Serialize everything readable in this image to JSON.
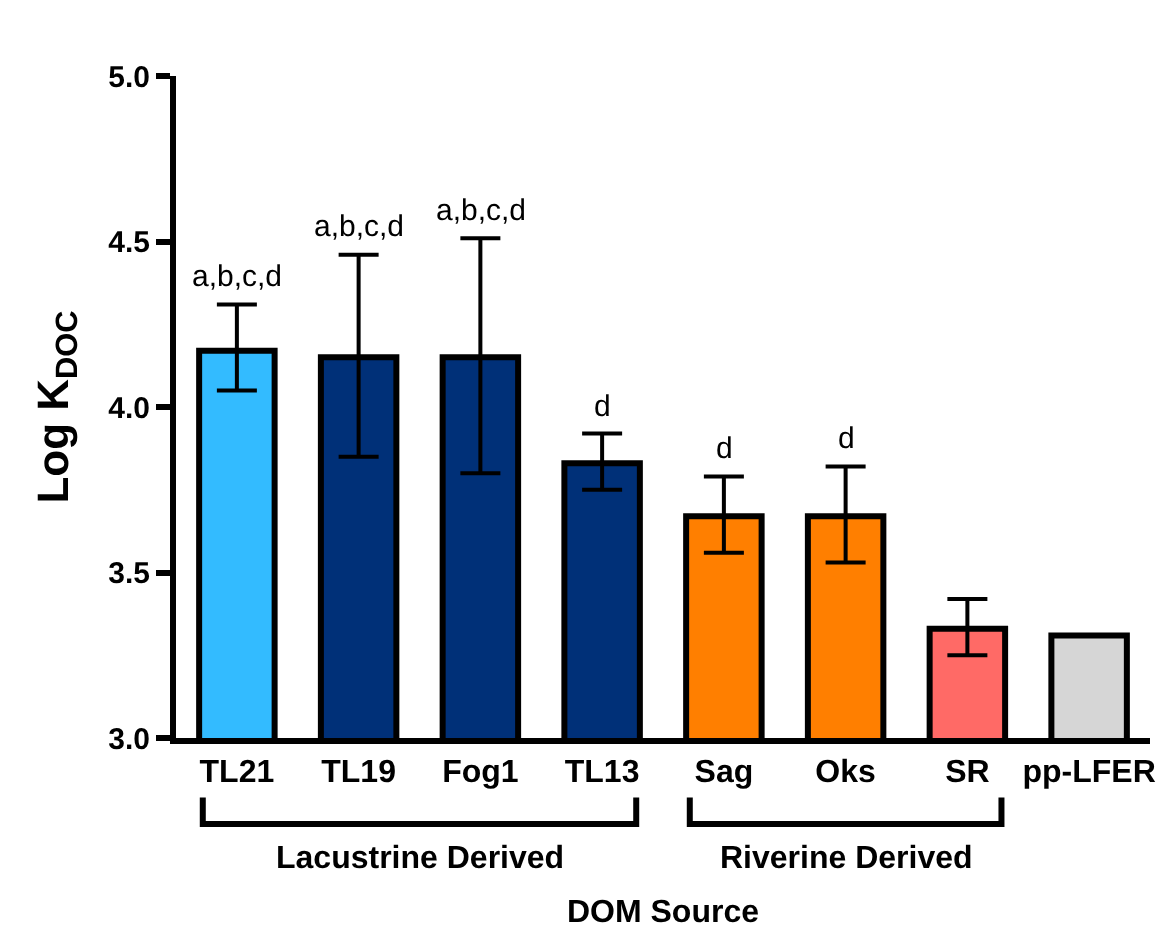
{
  "chart_data": {
    "type": "bar",
    "categories": [
      "TL21",
      "TL19",
      "Fog1",
      "TL13",
      "Sag",
      "Oks",
      "SR",
      "pp-LFER"
    ],
    "values": [
      4.17,
      4.15,
      4.15,
      3.83,
      3.67,
      3.67,
      3.33,
      3.31
    ],
    "colors": [
      "#33bbff",
      "#003078",
      "#003078",
      "#003078",
      "#ff7f00",
      "#ff7f00",
      "#ff6a66",
      "#d6d6d6"
    ],
    "errors": [
      [
        4.05,
        4.31
      ],
      [
        3.85,
        4.46
      ],
      [
        3.8,
        4.51
      ],
      [
        3.75,
        3.92
      ],
      [
        3.56,
        3.79
      ],
      [
        3.53,
        3.82
      ],
      [
        3.25,
        3.42
      ],
      null
    ],
    "ylim": [
      3,
      5
    ],
    "yticks": [
      {
        "value": 3,
        "label": "3.0"
      },
      {
        "value": 3.5,
        "label": "3.5"
      },
      {
        "value": 4,
        "label": "4.0"
      },
      {
        "value": 4.5,
        "label": "4.5"
      },
      {
        "value": 5,
        "label": "5.0"
      }
    ],
    "ylabel": "Log K$_{DOC}$",
    "xlabel": "DOM Source",
    "grid": false,
    "annotations": [
      {
        "text": "a,b,c,d",
        "x": "TL21",
        "y": 4.31
      },
      {
        "text": "a,b,c,d",
        "x": "TL19",
        "y": 4.46
      },
      {
        "text": "a,b,c,d",
        "x": "Fog1",
        "y": 4.51
      },
      {
        "text": "d",
        "x": "TL13",
        "y": 3.92
      },
      {
        "text": "d",
        "x": "Sag",
        "y": 3.79
      },
      {
        "text": "d",
        "x": "Oks",
        "y": 3.82
      },
      "Lacustrine Derived",
      "Riverine Derived"
    ]
  }
}
